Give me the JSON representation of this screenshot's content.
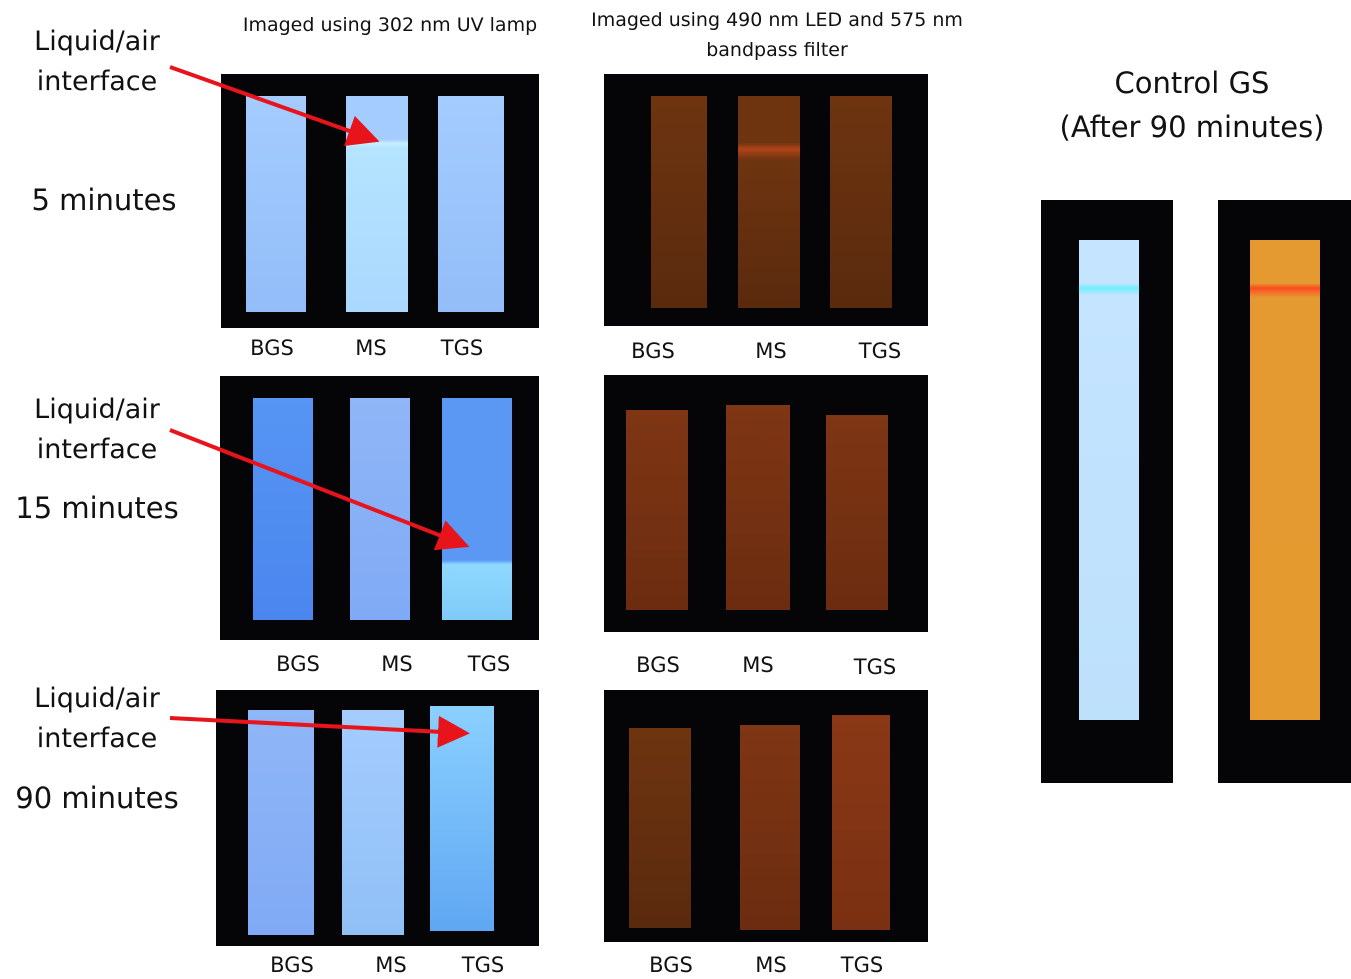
{
  "columns": [
    "Imaged using 302 nm UV lamp",
    "Imaged using 490 nm LED and 575 nm bandpass filter"
  ],
  "rows": [
    {
      "time": "5 minutes",
      "annotation": "Liquid/air interface",
      "uv_labels": [
        "BGS",
        "MS",
        "TGS"
      ],
      "led_labels": [
        "BGS",
        "MS",
        "TGS"
      ]
    },
    {
      "time": "15 minutes",
      "annotation": "Liquid/air interface",
      "uv_labels": [
        "BGS",
        "MS",
        "TGS"
      ],
      "led_labels": [
        "BGS",
        "MS",
        "TGS"
      ]
    },
    {
      "time": "90 minutes",
      "annotation": "Liquid/air interface",
      "uv_labels": [
        "BGS",
        "MS",
        "TGS"
      ],
      "led_labels": [
        "BGS",
        "MS",
        "TGS"
      ]
    }
  ],
  "control": {
    "title": "Control GS",
    "subtitle": "(After 90 minutes)"
  }
}
